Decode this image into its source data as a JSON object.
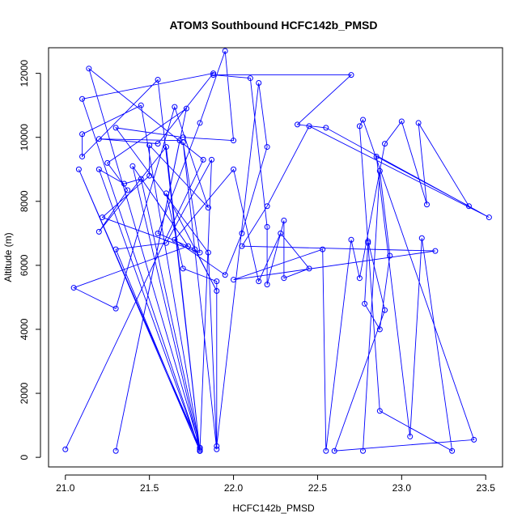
{
  "chart_data": {
    "type": "scatter",
    "title": "ATOM3 Southbound HCFC142b_PMSD",
    "xlabel": "HCFC142b_PMSD",
    "ylabel": "Altitude (m)",
    "xlim": [
      20.9,
      23.6
    ],
    "ylim": [
      -300,
      12800
    ],
    "xticks": [
      21.0,
      21.5,
      22.0,
      22.5,
      23.0,
      23.5
    ],
    "xtick_labels": [
      "21.0",
      "21.5",
      "22.0",
      "22.5",
      "23.0",
      "23.5"
    ],
    "yticks": [
      0,
      2000,
      4000,
      6000,
      8000,
      10000,
      12000
    ],
    "ytick_labels": [
      "0",
      "2000",
      "4000",
      "6000",
      "8000",
      "10000",
      "12000"
    ],
    "grid": false,
    "series": [
      {
        "color": "#0000ff",
        "mode": "lines+markers",
        "x": [
          21.0,
          21.82,
          21.14,
          21.8,
          21.8,
          21.45,
          21.1,
          21.1,
          21.55,
          21.8,
          21.1,
          21.88,
          21.55,
          21.2,
          21.68,
          21.3,
          21.72,
          21.25,
          21.37,
          21.2,
          21.6,
          21.8,
          21.87,
          21.6,
          21.3,
          21.8,
          21.08,
          21.8,
          21.45,
          21.35,
          21.2,
          21.8,
          21.4,
          21.73,
          21.05,
          21.3,
          21.65,
          21.85,
          21.5,
          21.5,
          21.22,
          21.8,
          21.7,
          21.9,
          21.85,
          21.3,
          21.7,
          22.0,
          21.95,
          21.8,
          21.55,
          21.77,
          21.9,
          21.6,
          21.7,
          21.9,
          21.9,
          22.15,
          22.2,
          22.05,
          21.95,
          21.65,
          22.0,
          22.15,
          22.28,
          22.45,
          22.3,
          22.3,
          22.2,
          22.2,
          22.1,
          21.88,
          22.7,
          22.38,
          22.55,
          23.52,
          22.45,
          22.2,
          22.05,
          23.2,
          22.0,
          22.53,
          22.55,
          22.7,
          22.75,
          22.9,
          23.0,
          23.15,
          23.1,
          23.4,
          22.85,
          23.05,
          23.12,
          23.3,
          22.87,
          22.8,
          22.75,
          22.77,
          23.43,
          22.6,
          22.9,
          22.8,
          22.78,
          22.87,
          22.93,
          22.87,
          22.77
        ],
        "y": [
          250,
          9300,
          12150,
          300,
          250,
          11000,
          10100,
          9400,
          11800,
          200,
          11200,
          12000,
          9800,
          9950,
          9900,
          200,
          10900,
          9200,
          8350,
          7050,
          9700,
          200,
          9300,
          6700,
          6500,
          200,
          9000,
          300,
          8700,
          8550,
          9000,
          200,
          9100,
          6600,
          5300,
          4650,
          10950,
          7800,
          9750,
          8800,
          7500,
          6400,
          9850,
          250,
          6400,
          10300,
          10000,
          9900,
          12700,
          10450,
          7000,
          6500,
          5200,
          8250,
          5900,
          5500,
          350,
          11700,
          9700,
          7000,
          5700,
          6800,
          9000,
          5500,
          7000,
          5900,
          5600,
          7400,
          5400,
          7200,
          11850,
          11950,
          11950,
          10400,
          10300,
          7500,
          10350,
          7850,
          6600,
          6450,
          5550,
          6500,
          200,
          6800,
          5600,
          9800,
          10500,
          7900,
          10450,
          7850,
          9400,
          650,
          6850,
          200,
          1450,
          6700,
          10350,
          10550,
          550,
          200,
          4600,
          6750,
          4800,
          4000,
          6300,
          8950,
          200
        ]
      }
    ]
  }
}
